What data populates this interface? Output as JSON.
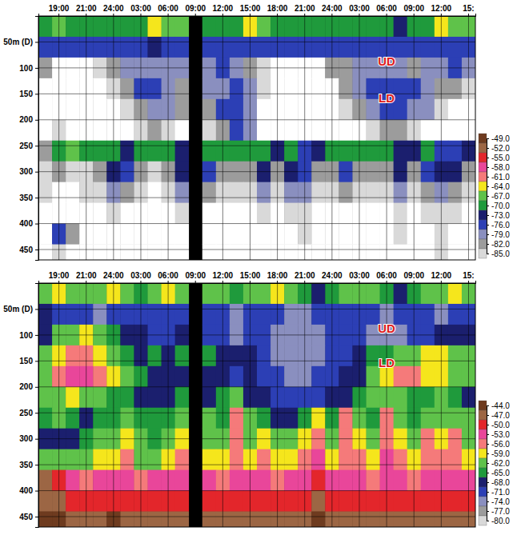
{
  "chart_data": [
    {
      "type": "heatmap",
      "categories": [
        null,
        "19:00",
        null,
        "21:00",
        null,
        "24:00",
        null,
        "03:00",
        null,
        "06:00",
        null,
        "09:00",
        null,
        "12:00",
        null,
        "15:00",
        null,
        "18:00",
        null,
        "21:00",
        null,
        "24:00",
        null,
        "03:00",
        null,
        "06:00",
        null,
        "09:00",
        null,
        "12:00",
        null,
        "15:"
      ],
      "ylim": [
        0,
        470
      ],
      "yticks": [
        {
          "value": 50,
          "label": "50m (D)"
        },
        100,
        150,
        200,
        250,
        300,
        350,
        400,
        450
      ],
      "grid": true,
      "y_bins": [
        0,
        40,
        80,
        120,
        160,
        200,
        240,
        280,
        320,
        360,
        400,
        440,
        480
      ],
      "cells": [
        [
          -70,
          -66,
          -68,
          -70,
          -69,
          -70,
          -70,
          -68,
          -64,
          -65,
          -66,
          null,
          -68,
          -70,
          -69,
          -64,
          -66,
          -68,
          -70,
          -70,
          -69,
          -70,
          -70,
          -69,
          -68,
          -70,
          -71,
          -70,
          -69,
          -64,
          -65,
          -66
        ],
        [
          -76,
          -75,
          -74,
          -75,
          -75,
          -76,
          -75,
          -74,
          -73,
          -75,
          -76,
          null,
          -74,
          -75,
          -76,
          -75,
          -74,
          -75,
          -76,
          -76,
          -75,
          -74,
          -74,
          -75,
          -76,
          -76,
          -75,
          -75,
          -76,
          -74,
          -75,
          -76
        ],
        [
          -80,
          -86,
          -88,
          -87,
          -84,
          -80,
          -78,
          -77,
          -77,
          -78,
          -79,
          null,
          -77,
          -76,
          -78,
          -80,
          -84,
          -86,
          -88,
          -88,
          -86,
          -82,
          -80,
          -79,
          -78,
          -77,
          -78,
          -80,
          -79,
          -77,
          -76,
          -78
        ],
        [
          -86,
          -88,
          -89,
          -88,
          -86,
          -84,
          -80,
          -76,
          -76,
          -77,
          -80,
          null,
          -78,
          -77,
          -76,
          -78,
          -85,
          -88,
          -89,
          -89,
          -88,
          -86,
          -82,
          -78,
          -76,
          -75,
          -75,
          -76,
          -77,
          -80,
          -82,
          -84
        ],
        [
          -88,
          -89,
          -89,
          -88,
          -87,
          -86,
          -84,
          -80,
          -77,
          -78,
          -82,
          null,
          -80,
          -76,
          -75,
          -77,
          -86,
          -88,
          -89,
          -89,
          -88,
          -87,
          -85,
          -82,
          -78,
          -76,
          -75,
          -77,
          -79,
          -84,
          -86,
          -87
        ],
        [
          -86,
          -84,
          -88,
          -88,
          -87,
          -87,
          -86,
          -85,
          -82,
          -84,
          -86,
          null,
          -84,
          -80,
          -76,
          -79,
          -86,
          -88,
          -88,
          -88,
          -88,
          -87,
          -86,
          -86,
          -84,
          -82,
          -80,
          -84,
          -86,
          -87,
          -87,
          -88
        ],
        [
          -80,
          -68,
          -67,
          -68,
          -70,
          -69,
          -72,
          -70,
          -68,
          -70,
          -72,
          null,
          -69,
          -70,
          -68,
          -70,
          -69,
          -72,
          -70,
          -75,
          -72,
          -69,
          -68,
          -70,
          -68,
          -69,
          -72,
          -71,
          -70,
          -75,
          -76,
          -72
        ],
        [
          -84,
          -82,
          -84,
          -83,
          -80,
          -72,
          -74,
          -82,
          -84,
          -80,
          -73,
          null,
          -76,
          -82,
          -80,
          -82,
          -73,
          -80,
          -72,
          -74,
          -80,
          -82,
          -74,
          -80,
          -82,
          -80,
          -73,
          -82,
          -74,
          -72,
          -73,
          -80
        ],
        [
          -85,
          -86,
          -86,
          -85,
          -84,
          -78,
          -80,
          -85,
          -86,
          -84,
          -79,
          null,
          -80,
          -85,
          -84,
          -85,
          -79,
          -84,
          -78,
          -77,
          -84,
          -85,
          -80,
          -84,
          -85,
          -83,
          -79,
          -84,
          -80,
          -78,
          -80,
          -84
        ],
        [
          -87,
          -88,
          -88,
          -87,
          -86,
          -84,
          -86,
          -87,
          -88,
          -86,
          -85,
          null,
          -86,
          -87,
          -86,
          -87,
          -85,
          -86,
          -85,
          -84,
          -86,
          -87,
          -86,
          -86,
          -87,
          -86,
          -84,
          -86,
          -85,
          -83,
          -85,
          -86
        ],
        [
          -86,
          -76,
          -80,
          -87,
          -87,
          -86,
          -87,
          -88,
          -88,
          -87,
          -86,
          null,
          -87,
          -88,
          -87,
          -88,
          -86,
          -87,
          -86,
          -85,
          -87,
          -88,
          -87,
          -87,
          -88,
          -87,
          -85,
          -87,
          -86,
          -84,
          -86,
          -87
        ],
        [
          -88,
          -84,
          -86,
          -88,
          -88,
          -87,
          -88,
          -88,
          -89,
          -88,
          -87,
          null,
          -88,
          -89,
          -88,
          -89,
          -87,
          -88,
          -87,
          -86,
          -88,
          -89,
          -88,
          -88,
          -89,
          -88,
          -86,
          -88,
          -87,
          -85,
          -87,
          -88
        ]
      ],
      "colorbar_ticks": [
        {
          "value": -49,
          "label": "-49.0"
        },
        {
          "value": -52,
          "label": "-52.0"
        },
        {
          "value": -55,
          "label": "-55.0"
        },
        {
          "value": -58,
          "label": "-58.0"
        },
        {
          "value": -61,
          "label": "-61.0"
        },
        {
          "value": -64,
          "label": "-64.0"
        },
        {
          "value": -67,
          "label": "-67.0"
        },
        {
          "value": -70,
          "label": "-70.0"
        },
        {
          "value": -73,
          "label": "-73.0"
        },
        {
          "value": -76,
          "label": "-76.0"
        },
        {
          "value": -79,
          "label": "-79.0"
        },
        {
          "value": -82,
          "label": "-82.0"
        },
        {
          "value": -85,
          "label": "-85.0"
        }
      ],
      "colors": [
        "#6e3b1f",
        "#9c6644",
        "#e3262b",
        "#e9469a",
        "#f57a7a",
        "#f5e61c",
        "#5fc24a",
        "#1f9a3c",
        "#1b1f6e",
        "#2c3fb5",
        "#8a8fbf",
        "#9c9c9c",
        "#d9d9d9"
      ],
      "annotations": [
        {
          "text": "UD",
          "x": 25,
          "y": 90
        },
        {
          "text": "LD",
          "x": 25,
          "y": 160
        }
      ]
    },
    {
      "type": "heatmap",
      "categories": [
        null,
        "19:00",
        null,
        "21:00",
        null,
        "24:00",
        null,
        "03:00",
        null,
        "06:00",
        null,
        "09:00",
        null,
        "12:00",
        null,
        "15:00",
        null,
        "18:00",
        null,
        "21:00",
        null,
        "24:00",
        null,
        "03:00",
        null,
        "06:00",
        null,
        "09:00",
        null,
        "12:00",
        null,
        "15:"
      ],
      "ylim": [
        0,
        470
      ],
      "yticks": [
        {
          "value": 50,
          "label": "50m (D)"
        },
        100,
        150,
        200,
        250,
        300,
        350,
        400,
        450
      ],
      "grid": true,
      "y_bins": [
        0,
        40,
        80,
        120,
        160,
        200,
        240,
        280,
        320,
        360,
        400,
        440,
        480
      ],
      "cells": [
        [
          -62,
          -58,
          -60,
          -62,
          -60,
          -58,
          -62,
          -64,
          -60,
          -58,
          -60,
          null,
          -62,
          -60,
          -64,
          -62,
          -60,
          -58,
          -62,
          -64,
          -66,
          -64,
          -62,
          -60,
          -62,
          -64,
          -66,
          -64,
          -62,
          -60,
          -58,
          -62
        ],
        [
          -68,
          -70,
          -70,
          -71,
          -72,
          -71,
          -70,
          -69,
          -70,
          -71,
          -70,
          null,
          -70,
          -71,
          -72,
          -71,
          -70,
          -71,
          -72,
          -72,
          -71,
          -70,
          -69,
          -70,
          -71,
          -72,
          -71,
          -70,
          -71,
          -72,
          -70,
          -69
        ],
        [
          -66,
          -62,
          -60,
          -58,
          -62,
          -64,
          -66,
          -68,
          -70,
          -69,
          -68,
          null,
          -70,
          -71,
          -72,
          -70,
          -71,
          -72,
          -72,
          -73,
          -72,
          -71,
          -70,
          -71,
          -72,
          -73,
          -72,
          -71,
          -70,
          -68,
          -66,
          -68
        ],
        [
          -62,
          -57,
          -55,
          -56,
          -58,
          -60,
          -64,
          -66,
          -64,
          -66,
          -65,
          null,
          -64,
          -66,
          -67,
          -66,
          -70,
          -72,
          -73,
          -73,
          -72,
          -71,
          -70,
          -68,
          -65,
          -63,
          -62,
          -60,
          -58,
          -59,
          -60,
          -62
        ],
        [
          -60,
          -54,
          -52,
          -53,
          -55,
          -58,
          -62,
          -65,
          -66,
          -67,
          -66,
          null,
          -66,
          -68,
          -70,
          -68,
          -69,
          -71,
          -72,
          -72,
          -71,
          -70,
          -68,
          -66,
          -62,
          -58,
          -56,
          -55,
          -57,
          -58,
          -60,
          -62
        ],
        [
          -62,
          -60,
          -58,
          -60,
          -62,
          -64,
          -64,
          -66,
          -68,
          -66,
          -64,
          null,
          -66,
          -64,
          -62,
          -66,
          -68,
          -70,
          -70,
          -71,
          -70,
          -68,
          -66,
          -64,
          -62,
          -60,
          -62,
          -64,
          -63,
          -62,
          -64,
          -66
        ],
        [
          -64,
          -62,
          -64,
          -66,
          -64,
          -63,
          -62,
          -64,
          -65,
          -64,
          -62,
          null,
          -62,
          -64,
          -56,
          -62,
          -64,
          -66,
          -68,
          -64,
          -58,
          -64,
          -56,
          -62,
          -64,
          -56,
          -62,
          -64,
          -60,
          -62,
          -60,
          -62
        ],
        [
          -66,
          -67,
          -66,
          -65,
          -62,
          -60,
          -58,
          -62,
          -63,
          -62,
          -58,
          null,
          -60,
          -62,
          -54,
          -60,
          -58,
          -62,
          -60,
          -58,
          -54,
          -60,
          -55,
          -58,
          -60,
          -54,
          -58,
          -60,
          -56,
          -58,
          -56,
          -60
        ],
        [
          -60,
          -62,
          -61,
          -60,
          -59,
          -58,
          -56,
          -60,
          -60,
          -58,
          -56,
          null,
          -58,
          -59,
          -54,
          -58,
          -56,
          -58,
          -57,
          -56,
          -53,
          -57,
          -54,
          -56,
          -58,
          -53,
          -56,
          -57,
          -55,
          -56,
          -55,
          -57
        ],
        [
          -47,
          -50,
          -53,
          -54,
          -52,
          -53,
          -52,
          -54,
          -53,
          -52,
          -52,
          null,
          -53,
          -54,
          -52,
          -53,
          -53,
          -54,
          -53,
          -52,
          -50,
          -53,
          -52,
          -53,
          -54,
          -51,
          -53,
          -54,
          -52,
          -53,
          -52,
          -53
        ],
        [
          -45,
          -46,
          -48,
          -49,
          -48,
          -48,
          -48,
          -49,
          -49,
          -48,
          -48,
          null,
          -49,
          -50,
          -48,
          -49,
          -48,
          -50,
          -49,
          -48,
          -47,
          -49,
          -48,
          -49,
          -50,
          -48,
          -49,
          -50,
          -49,
          -49,
          -48,
          -49
        ],
        [
          -44,
          -44,
          -45,
          -45,
          -45,
          -44,
          -45,
          -45,
          -46,
          -45,
          -45,
          null,
          -45,
          -46,
          -45,
          -45,
          -45,
          -46,
          -45,
          -45,
          -44,
          -45,
          -45,
          -45,
          -46,
          -45,
          -45,
          -46,
          -45,
          -45,
          -45,
          -45
        ]
      ],
      "colorbar_ticks": [
        {
          "value": -44,
          "label": "-44.0"
        },
        {
          "value": -47,
          "label": "-47.0"
        },
        {
          "value": -50,
          "label": "-50.0"
        },
        {
          "value": -53,
          "label": "-53.0"
        },
        {
          "value": -56,
          "label": "-56.0"
        },
        {
          "value": -59,
          "label": "-59.0"
        },
        {
          "value": -62,
          "label": "-62.0"
        },
        {
          "value": -65,
          "label": "-65.0"
        },
        {
          "value": -68,
          "label": "-68.0"
        },
        {
          "value": -71,
          "label": "-71.0"
        },
        {
          "value": -74,
          "label": "-74.0"
        },
        {
          "value": -77,
          "label": "-77.0"
        },
        {
          "value": -80,
          "label": "-80.0"
        }
      ],
      "colors": [
        "#6e3b1f",
        "#9c6644",
        "#e3262b",
        "#e9469a",
        "#f57a7a",
        "#f5e61c",
        "#5fc24a",
        "#1f9a3c",
        "#1b1f6e",
        "#2c3fb5",
        "#8a8fbf",
        "#9c9c9c",
        "#d9d9d9"
      ],
      "annotations": [
        {
          "text": "UD",
          "x": 25,
          "y": 90
        },
        {
          "text": "LD",
          "x": 25,
          "y": 155
        }
      ]
    }
  ]
}
